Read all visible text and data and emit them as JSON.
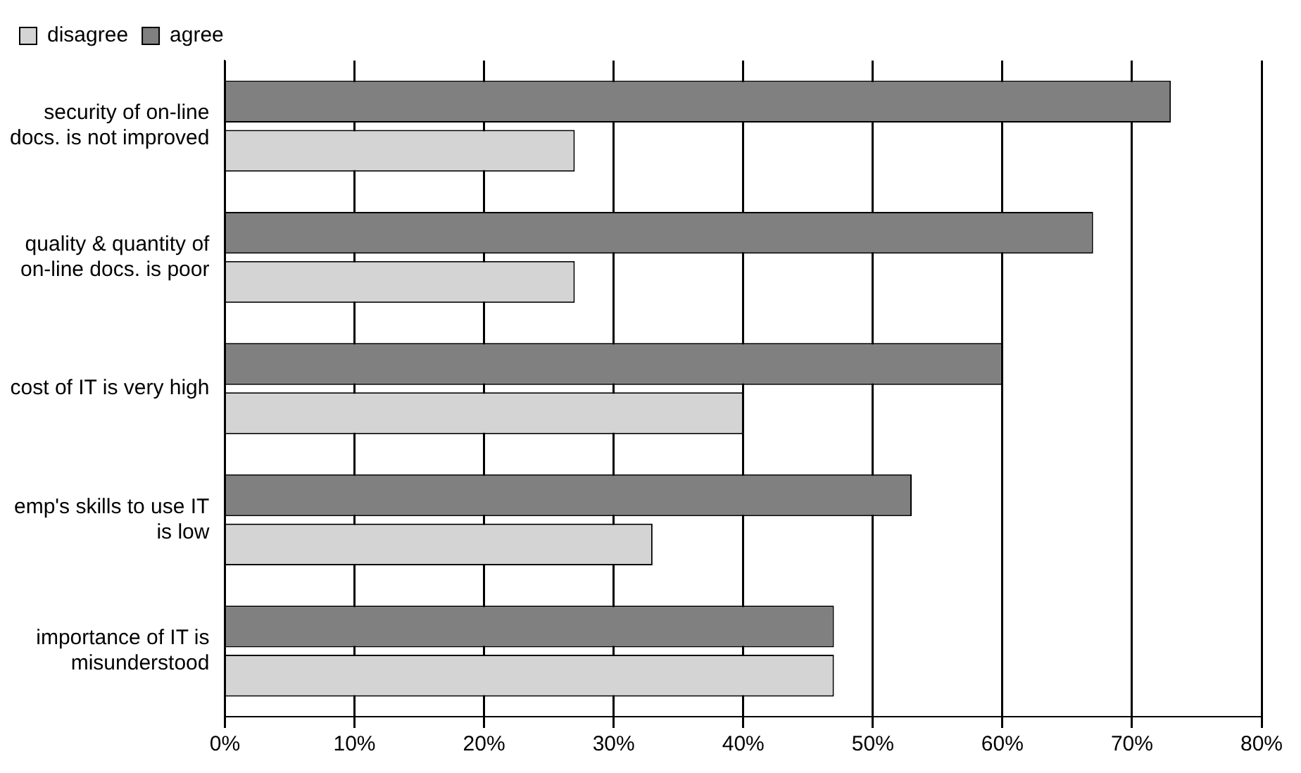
{
  "chart_data": {
    "type": "bar",
    "orientation": "horizontal",
    "categories": [
      "security of on-line docs. is not improved",
      "quality & quantity of on-line docs. is poor",
      "cost of IT is very high",
      "emp's skills to use IT is low",
      "importance of IT is misunderstood"
    ],
    "series": [
      {
        "name": "agree",
        "color": "#808080",
        "values": [
          73,
          67,
          60,
          53,
          47
        ]
      },
      {
        "name": "disagree",
        "color": "#d4d4d4",
        "values": [
          27,
          27,
          40,
          33,
          47
        ]
      }
    ],
    "xlim": [
      0,
      80
    ],
    "xticks": [
      {
        "value": 0,
        "label": "0%"
      },
      {
        "value": 10,
        "label": "10%"
      },
      {
        "value": 20,
        "label": "20%"
      },
      {
        "value": 30,
        "label": "30%"
      },
      {
        "value": 40,
        "label": "40%"
      },
      {
        "value": 50,
        "label": "50%"
      },
      {
        "value": 60,
        "label": "60%"
      },
      {
        "value": 70,
        "label": "70%"
      },
      {
        "value": 80,
        "label": "80%"
      }
    ],
    "grid": "x",
    "legend": "top left"
  }
}
